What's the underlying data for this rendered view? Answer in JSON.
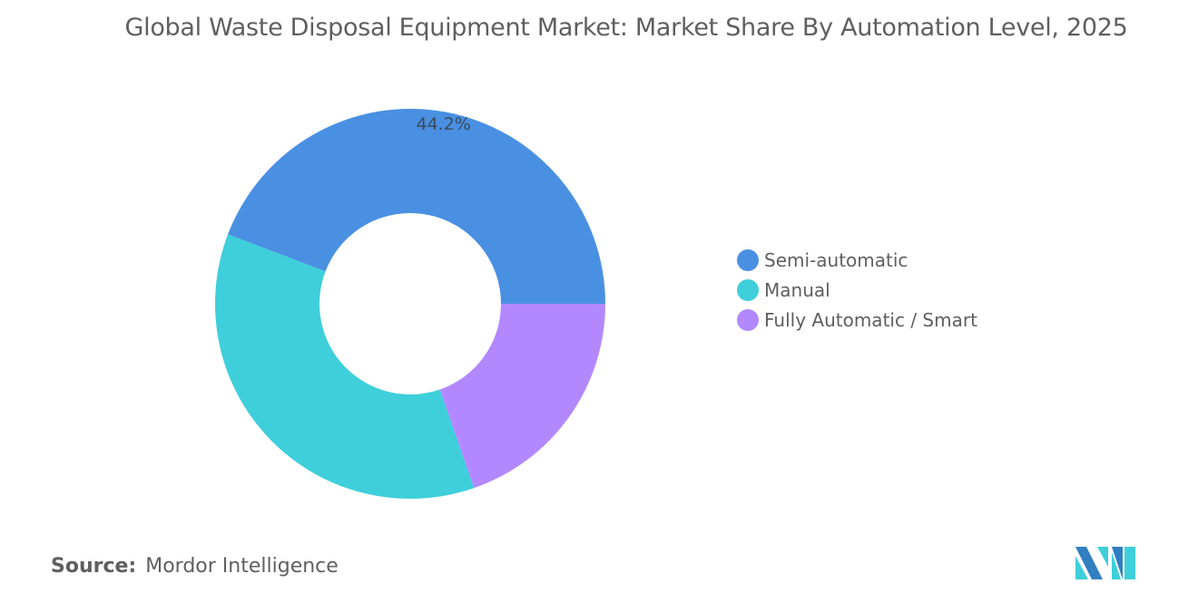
{
  "chart_data": {
    "type": "pie",
    "variant": "donut",
    "title": "Global Waste Disposal Equipment Market: Market Share By Automation Level, 2025",
    "categories": [
      "Semi-automatic",
      "Manual",
      "Fully Automatic / Smart"
    ],
    "values": [
      44.2,
      36.1,
      19.7
    ],
    "unit": "%",
    "data_labels": [
      "44.2%",
      "",
      ""
    ],
    "colors": [
      "#4a90e2",
      "#3ecfda",
      "#b388ff"
    ],
    "legend_position": "right"
  },
  "source": {
    "label": "Source:",
    "text": "Mordor Intelligence"
  },
  "logo": {
    "name": "mordor-intelligence-logo",
    "colors": [
      "#2f7fc1",
      "#3ecfda"
    ]
  }
}
